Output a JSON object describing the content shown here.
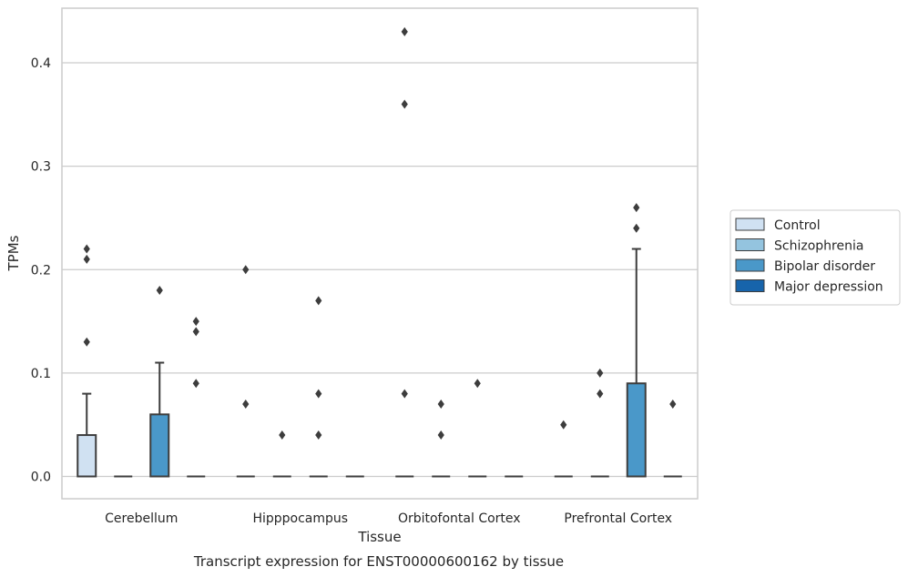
{
  "chart_data": {
    "type": "box",
    "title": "",
    "caption": "Transcript expression for ENST00000600162 by tissue",
    "xlabel": "Tissue",
    "ylabel": "TPMs",
    "ylim": [
      -0.02,
      0.455
    ],
    "yticks": [
      0.0,
      0.1,
      0.2,
      0.3,
      0.4
    ],
    "ytick_labels": [
      "0.0",
      "0.1",
      "0.2",
      "0.3",
      "0.4"
    ],
    "grid": "horizontal",
    "legend_position": "right",
    "categories": [
      "Cerebellum",
      "Hipppocampus",
      "Orbitofontal Cortex",
      "Prefrontal Cortex"
    ],
    "series": [
      {
        "name": "Control",
        "color": "#d0e1f2",
        "boxes": [
          {
            "min": 0.0,
            "q1": 0.0,
            "median": 0.0,
            "q3": 0.04,
            "max": 0.08,
            "outliers": [
              0.13,
              0.21,
              0.22
            ]
          },
          {
            "min": 0.0,
            "q1": 0.0,
            "median": 0.0,
            "q3": 0.0,
            "max": 0.0,
            "outliers": [
              0.07,
              0.2
            ]
          },
          {
            "min": 0.0,
            "q1": 0.0,
            "median": 0.0,
            "q3": 0.0,
            "max": 0.0,
            "outliers": [
              0.08,
              0.36,
              0.43
            ]
          },
          {
            "min": 0.0,
            "q1": 0.0,
            "median": 0.0,
            "q3": 0.0,
            "max": 0.0,
            "outliers": [
              0.05
            ]
          }
        ]
      },
      {
        "name": "Schizophrenia",
        "color": "#94c4df",
        "boxes": [
          {
            "min": 0.0,
            "q1": 0.0,
            "median": 0.0,
            "q3": 0.0,
            "max": 0.0,
            "outliers": []
          },
          {
            "min": 0.0,
            "q1": 0.0,
            "median": 0.0,
            "q3": 0.0,
            "max": 0.0,
            "outliers": [
              0.04
            ]
          },
          {
            "min": 0.0,
            "q1": 0.0,
            "median": 0.0,
            "q3": 0.0,
            "max": 0.0,
            "outliers": [
              0.04,
              0.07
            ]
          },
          {
            "min": 0.0,
            "q1": 0.0,
            "median": 0.0,
            "q3": 0.0,
            "max": 0.0,
            "outliers": [
              0.08,
              0.1
            ]
          }
        ]
      },
      {
        "name": "Bipolar disorder",
        "color": "#4a98c9",
        "boxes": [
          {
            "min": 0.0,
            "q1": 0.0,
            "median": 0.0,
            "q3": 0.06,
            "max": 0.11,
            "outliers": [
              0.18
            ]
          },
          {
            "min": 0.0,
            "q1": 0.0,
            "median": 0.0,
            "q3": 0.0,
            "max": 0.0,
            "outliers": [
              0.04,
              0.08,
              0.17
            ]
          },
          {
            "min": 0.0,
            "q1": 0.0,
            "median": 0.0,
            "q3": 0.0,
            "max": 0.0,
            "outliers": [
              0.09
            ]
          },
          {
            "min": 0.0,
            "q1": 0.0,
            "median": 0.0,
            "q3": 0.09,
            "max": 0.22,
            "outliers": [
              0.24,
              0.26
            ]
          }
        ]
      },
      {
        "name": "Major depression",
        "color": "#1764ab",
        "boxes": [
          {
            "min": 0.0,
            "q1": 0.0,
            "median": 0.0,
            "q3": 0.0,
            "max": 0.0,
            "outliers": [
              0.09,
              0.14,
              0.15
            ]
          },
          {
            "min": 0.0,
            "q1": 0.0,
            "median": 0.0,
            "q3": 0.0,
            "max": 0.0,
            "outliers": []
          },
          {
            "min": 0.0,
            "q1": 0.0,
            "median": 0.0,
            "q3": 0.0,
            "max": 0.0,
            "outliers": []
          },
          {
            "min": 0.0,
            "q1": 0.0,
            "median": 0.0,
            "q3": 0.0,
            "max": 0.0,
            "outliers": [
              0.07
            ]
          }
        ]
      }
    ]
  }
}
